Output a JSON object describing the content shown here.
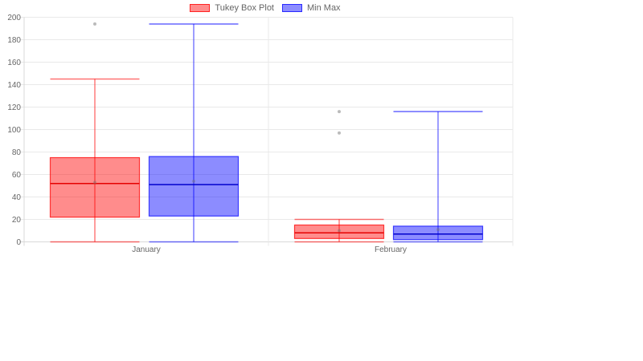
{
  "chart_data": {
    "type": "boxplot",
    "title": "",
    "categories": [
      "January",
      "February"
    ],
    "y_axis": {
      "min": 0,
      "max": 200,
      "tick_step": 20,
      "ticks": [
        0,
        20,
        40,
        60,
        80,
        100,
        120,
        140,
        160,
        180,
        200
      ]
    },
    "legend_position": "top",
    "grid": true,
    "colors": {
      "grid_line": "#e9e9e9",
      "axis_line": "#d9d9d9",
      "tick_text": "#666666",
      "outlier_dot": "rgba(120,120,120,0.5)",
      "mean_dot": "rgba(120,120,120,0.45)"
    },
    "series": [
      {
        "name": "Tukey Box Plot",
        "color": "#ff0000",
        "fill": "rgba(255,0,0,0.45)",
        "border": "rgba(255,0,0,0.75)",
        "median_color": "#e60000",
        "whisker_color": "rgba(255,0,0,0.55)",
        "boxes": [
          {
            "category": "January",
            "whisker_low": 0,
            "q1": 22,
            "median": 52,
            "mean": 53,
            "q3": 75,
            "whisker_high": 145,
            "outliers": [
              194
            ]
          },
          {
            "category": "February",
            "whisker_low": 0,
            "q1": 3,
            "median": 8,
            "mean": 10,
            "q3": 15,
            "whisker_high": 20,
            "outliers": [
              97,
              116
            ]
          }
        ]
      },
      {
        "name": "Min Max",
        "color": "#0000ff",
        "fill": "rgba(0,0,255,0.45)",
        "border": "rgba(0,0,255,0.7)",
        "median_color": "#0000cc",
        "whisker_color": "rgba(0,0,255,0.55)",
        "boxes": [
          {
            "category": "January",
            "whisker_low": 0,
            "q1": 23,
            "median": 51,
            "mean": 54,
            "q3": 76,
            "whisker_high": 194,
            "outliers": []
          },
          {
            "category": "February",
            "whisker_low": 0,
            "q1": 2,
            "median": 7,
            "mean": 11,
            "q3": 14,
            "whisker_high": 116,
            "outliers": []
          }
        ]
      }
    ]
  }
}
